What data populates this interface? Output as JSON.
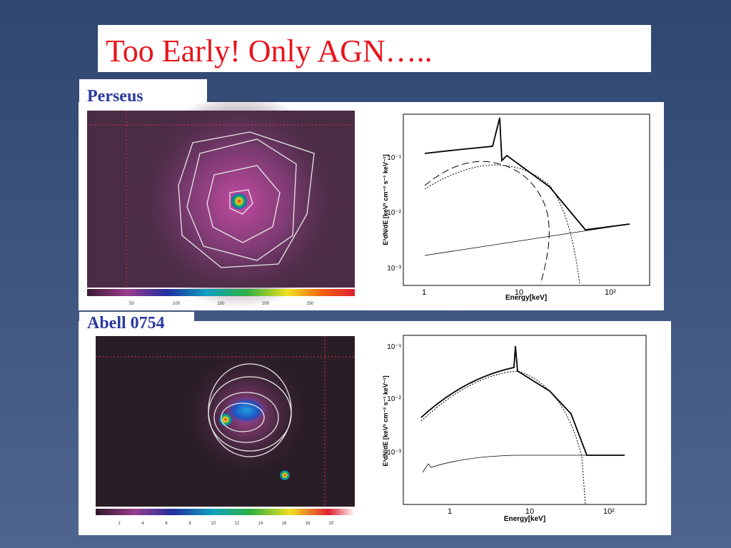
{
  "title": "Too Early! Only AGN…..",
  "panels": [
    {
      "label": "Perseus",
      "colorbar_labels": [
        "50",
        "100",
        "150",
        "200",
        "250"
      ],
      "spectrum": {
        "x_label": "Energy[keV]",
        "y_label": "E²dN/dE [keV² cm⁻² s⁻¹ keV⁻¹]",
        "x_ticks": [
          "1",
          "10",
          "10²"
        ],
        "y_ticks": [
          "10⁻¹",
          "10⁻²",
          "10⁻³"
        ]
      }
    },
    {
      "label": "Abell 0754",
      "colorbar_labels": [
        "2",
        "4",
        "6",
        "8",
        "10",
        "12",
        "14",
        "16",
        "18",
        "20"
      ],
      "spectrum": {
        "x_label": "Energy[keV]",
        "y_label": "E²dN/dE [keV² cm⁻² s⁻¹ keV⁻¹]",
        "x_ticks": [
          "1",
          "10",
          "10²"
        ],
        "y_ticks": [
          "10⁻¹",
          "10⁻²",
          "10⁻³"
        ]
      }
    }
  ]
}
